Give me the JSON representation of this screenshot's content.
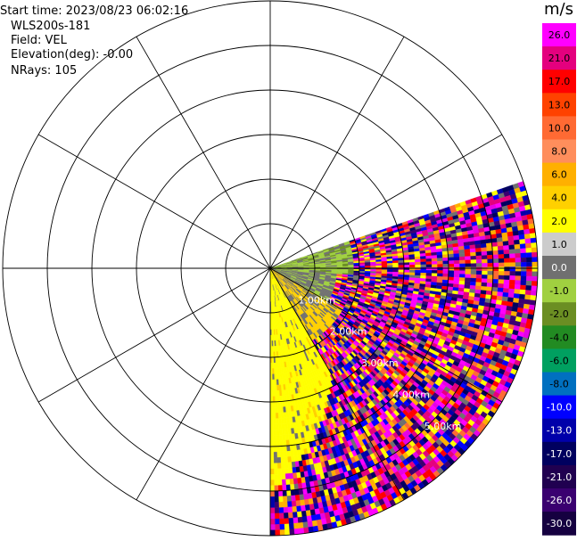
{
  "header": {
    "start_time": "Start time: 2023/08/23 06:02:16",
    "instrument": "WLS200s-181",
    "field": "Field: VEL",
    "elevation": "Elevation(deg): -0.00",
    "nrays": "NRays: 105"
  },
  "colorbar": {
    "unit": "m/s",
    "labels": [
      "26.0",
      "21.0",
      "17.0",
      "13.0",
      "10.0",
      "8.0",
      "6.0",
      "4.0",
      "2.0",
      "1.0",
      "0.0",
      "-1.0",
      "-2.0",
      "-4.0",
      "-6.0",
      "-8.0",
      "-10.0",
      "-13.0",
      "-17.0",
      "-21.0",
      "-26.0",
      "-30.0"
    ],
    "colors": [
      "#ff00ff",
      "#e4007e",
      "#ff0000",
      "#ff4200",
      "#ff6a33",
      "#ff8e5c",
      "#ffb000",
      "#ffd000",
      "#ffff00",
      "#cccccc",
      "#707070",
      "#a0d040",
      "#6b8e23",
      "#228b22",
      "#00a060",
      "#0070c0",
      "#0000ff",
      "#0000aa",
      "#00005f",
      "#200050",
      "#3a0070",
      "#150040"
    ]
  },
  "chart_data": {
    "type": "ppi",
    "title": "",
    "field": "VEL",
    "unit": "m/s",
    "range_rings_km": [
      1.0,
      2.0,
      3.0,
      4.0,
      5.0
    ],
    "range_ring_labels": [
      "1.00km",
      "2.00km",
      "3.00km",
      "4.00km",
      "5.00km"
    ],
    "max_range_km": 6.0,
    "spoke_angles_deg": [
      0,
      30,
      60,
      90,
      120,
      150,
      180,
      210,
      240,
      270,
      300,
      330
    ],
    "sector_azimuth_deg": [
      71,
      180
    ],
    "nrays": 105,
    "velocity_range": [
      -30.0,
      26.0
    ]
  }
}
